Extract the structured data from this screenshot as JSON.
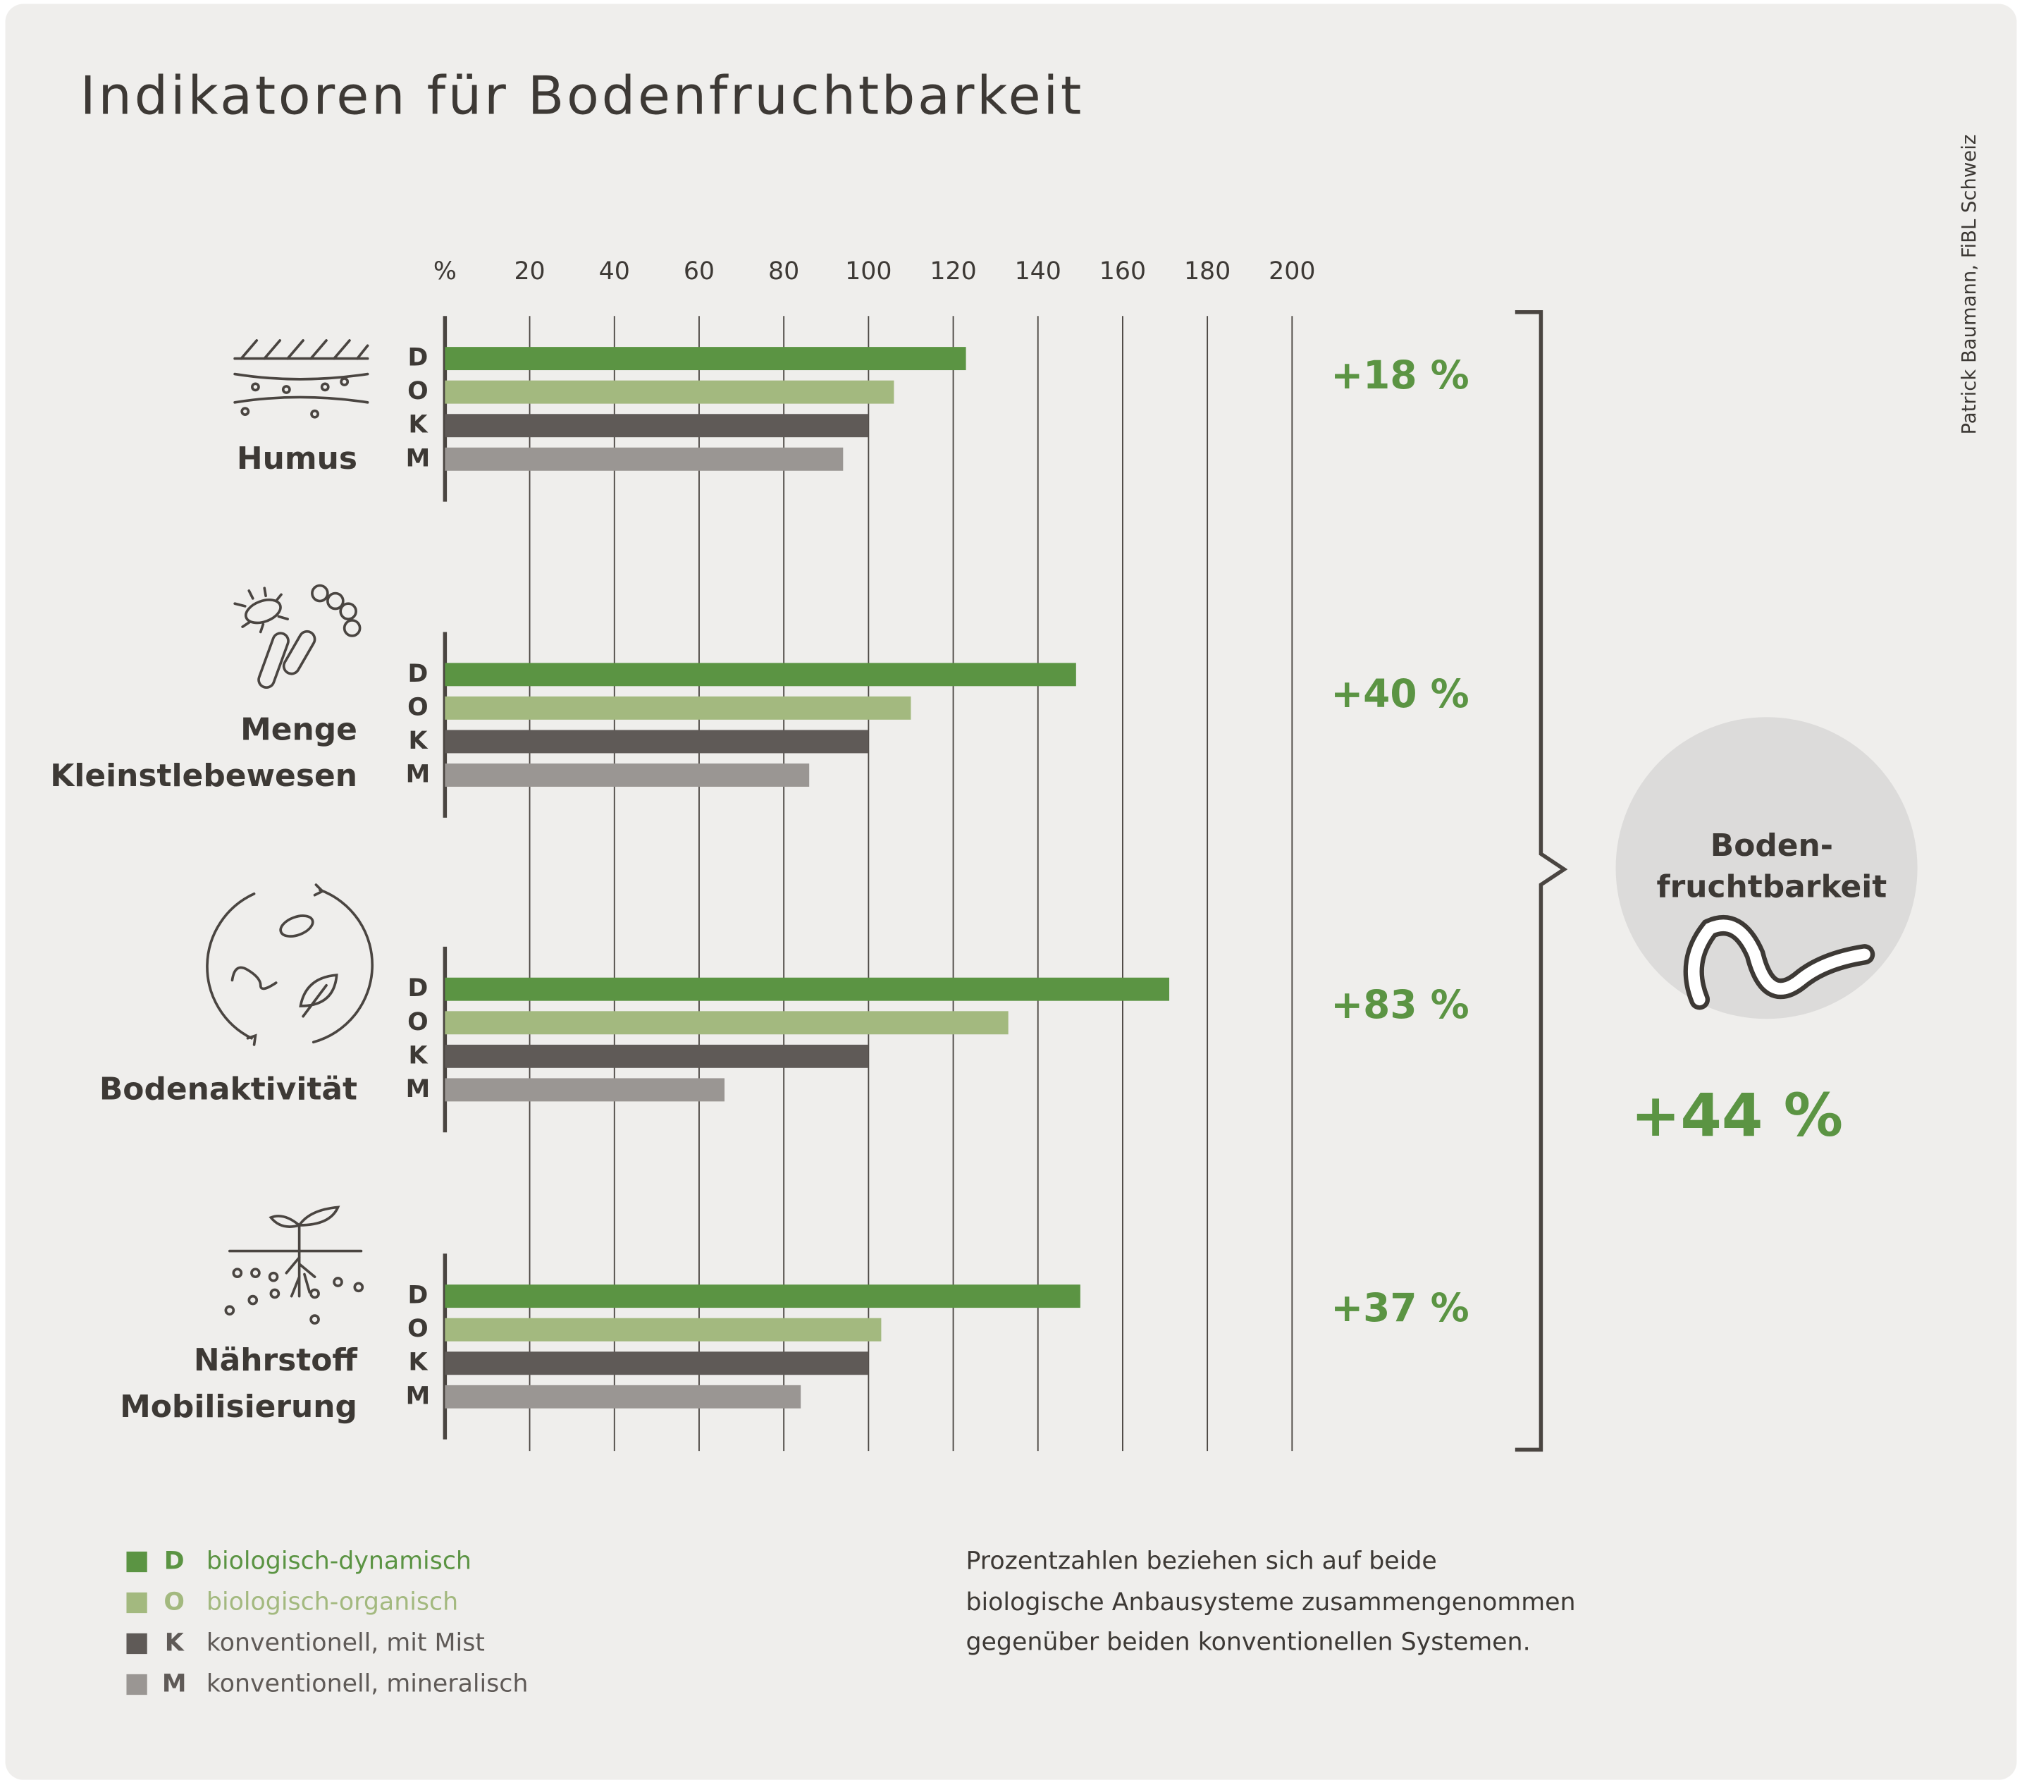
{
  "chart_data": {
    "type": "bar",
    "title": "Indikatoren für Bodenfruchtbarkeit",
    "credit": "Patrick Baumann, FiBL Schweiz",
    "categories": [
      [
        "Humus"
      ],
      [
        "Menge",
        "Kleinstlebewesen"
      ],
      [
        "Bodenaktivität"
      ],
      [
        "Nährstoff",
        "Mobilisierung"
      ]
    ],
    "series": [
      {
        "key": "D",
        "name": "biologisch-dynamisch",
        "color": "#5b9443",
        "values": [
          123,
          149,
          171,
          150
        ]
      },
      {
        "key": "O",
        "name": "biologisch-organisch",
        "color": "#a3b97f",
        "values": [
          106,
          110,
          133,
          103
        ]
      },
      {
        "key": "K",
        "name": "konventionell, mit Mist",
        "color": "#5f5a57",
        "values": [
          100,
          100,
          100,
          100
        ]
      },
      {
        "key": "M",
        "name": "konventionell, mineralisch",
        "color": "#9a9693",
        "values": [
          94,
          86,
          66,
          84
        ]
      }
    ],
    "group_labels": [
      "+18 %",
      "+40 %",
      "+83 %",
      "+37 %"
    ],
    "summary": {
      "label": [
        "Boden-",
        "fruchtbarkeit"
      ],
      "value": "+44 %"
    },
    "note": [
      "Prozentzahlen beziehen sich auf beide",
      "biologische Anbausysteme zusammengenommen",
      "gegenüber beiden konventionellen Systemen."
    ],
    "xlim": [
      0,
      200
    ],
    "xticks": [
      {
        "value": 0,
        "label": "%"
      },
      20,
      40,
      60,
      80,
      100,
      120,
      140,
      160,
      180,
      200
    ],
    "grid": true
  }
}
